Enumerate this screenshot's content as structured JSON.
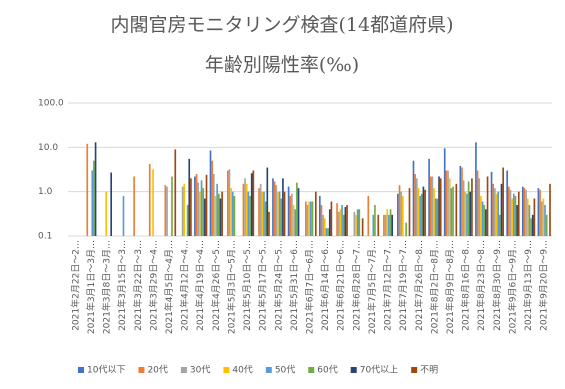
{
  "chart_data": {
    "type": "bar",
    "title": "内閣官房モニタリング検査(14都道府県)",
    "subtitle": "年齢別陽性率(‰)",
    "log_scale": true,
    "grid": true,
    "legend": "bottom",
    "ylim": [
      0.1,
      100
    ],
    "yticks": [
      {
        "value": 100,
        "label": "100.0"
      },
      {
        "value": 10,
        "label": "10.0"
      },
      {
        "value": 1,
        "label": "1.0"
      },
      0.1
    ],
    "categories": [
      "2021年2月22日～2…",
      "2021年3月1日～3月…",
      "2021年3月8日～3月…",
      "2021年3月15日～3…",
      "2021年3月22日～3…",
      "2021年3月29日～4…",
      "2021年4月5日～4月…",
      "2021年4月12日～4…",
      "2021年4月19日～4…",
      "2021年4月26日～5…",
      "2021年5月3日～5月…",
      "2021年5月10日～5…",
      "2021年5月17日～5…",
      "2021年5月24日～5…",
      "2021年5月31日～6…",
      "2021年6月7日～6月…",
      "2021年6月14日～6…",
      "2021年6月21日～6…",
      "2021年6月28日～7…",
      "2021年7月5日～7月…",
      "2021年7月12日～7…",
      "2021年7月19日～7…",
      "2021年7月26日～8…",
      "2021年8月2日～8月…",
      "2021年8月9日～8月…",
      "2021年8月16日～8…",
      "2021年8月23日～8…",
      "2021年8月30日～9…",
      "2021年9月6日～9月…",
      "2021年9月13日～9…",
      "2021年9月20日～9…"
    ],
    "series": [
      {
        "name": "10代以下",
        "color": "#4472c4",
        "values": [
          null,
          null,
          null,
          null,
          null,
          null,
          null,
          null,
          2.2,
          8.5,
          null,
          null,
          null,
          2.0,
          1.3,
          null,
          0.8,
          null,
          null,
          null,
          null,
          0.9,
          5,
          5.5,
          9.5,
          3.8,
          13,
          2.8,
          3,
          1.3,
          1.2
        ]
      },
      {
        "name": "20代",
        "color": "#ed7d31",
        "values": [
          null,
          12,
          null,
          null,
          2.2,
          4.2,
          1.4,
          null,
          2.5,
          5,
          3,
          1.5,
          1.2,
          1.7,
          0.8,
          0.6,
          0.5,
          0.55,
          null,
          0.8,
          0.3,
          1.4,
          2.5,
          2.2,
          3,
          3.5,
          3,
          1.5,
          1.3,
          1.2,
          1.1
        ]
      },
      {
        "name": "30代",
        "color": "#a5a5a5",
        "values": [
          null,
          null,
          null,
          null,
          null,
          null,
          1.3,
          1.3,
          1.6,
          2.5,
          3.2,
          2,
          1.5,
          1.4,
          0.9,
          0.5,
          0.3,
          0.35,
          0.35,
          null,
          0.3,
          1.0,
          2.0,
          2.2,
          3,
          1.8,
          2,
          1.2,
          1.1,
          1.1,
          0.6
        ]
      },
      {
        "name": "40代",
        "color": "#ffc000",
        "values": [
          null,
          null,
          1.0,
          null,
          null,
          3.2,
          null,
          1.5,
          1.0,
          0.8,
          1.2,
          1.5,
          1.0,
          1.0,
          0.5,
          0.6,
          0.25,
          0.4,
          0.3,
          null,
          0.4,
          0.8,
          1.2,
          1.2,
          2,
          1.0,
          0.8,
          0.9,
          0.7,
          0.7,
          0.7
        ]
      },
      {
        "name": "50代",
        "color": "#5b9bd5",
        "values": [
          null,
          3,
          null,
          0.8,
          null,
          null,
          null,
          null,
          1.8,
          1.5,
          1.0,
          1.0,
          1.0,
          1.0,
          0.4,
          0.6,
          0.15,
          0.5,
          0.4,
          0.3,
          0.3,
          null,
          0.8,
          0.7,
          1.2,
          0.9,
          0.6,
          1.0,
          0.9,
          0.5,
          0.5
        ]
      },
      {
        "name": "60代",
        "color": "#70ad47",
        "values": [
          null,
          5,
          null,
          null,
          null,
          null,
          2.2,
          0.5,
          1.2,
          0.9,
          0.8,
          0.8,
          0.6,
          0.7,
          1.6,
          0.6,
          0.15,
          0.3,
          0.4,
          0.5,
          0.4,
          0.2,
          0.9,
          0.7,
          1.3,
          1.7,
          0.5,
          0.3,
          0.8,
          0.25,
          0.3
        ]
      },
      {
        "name": "70代以上",
        "color": "#264478",
        "values": [
          null,
          13,
          2.7,
          null,
          null,
          null,
          null,
          5.5,
          0.7,
          0.7,
          null,
          2.6,
          3.5,
          2.0,
          1.2,
          null,
          0.4,
          0.45,
          null,
          null,
          0.3,
          null,
          1.3,
          2.2,
          null,
          1.0,
          0.4,
          1.5,
          0.5,
          0.3,
          null
        ]
      },
      {
        "name": "不明",
        "color": "#9e480e",
        "values": [
          null,
          null,
          null,
          null,
          null,
          null,
          9,
          2,
          2.4,
          1.0,
          null,
          3.0,
          0.35,
          1.0,
          null,
          1.0,
          0.6,
          0.5,
          0.25,
          0.3,
          null,
          1.2,
          1.1,
          2.0,
          1.5,
          2.0,
          2.2,
          3.5,
          1.0,
          0.7,
          1.5
        ]
      }
    ]
  }
}
